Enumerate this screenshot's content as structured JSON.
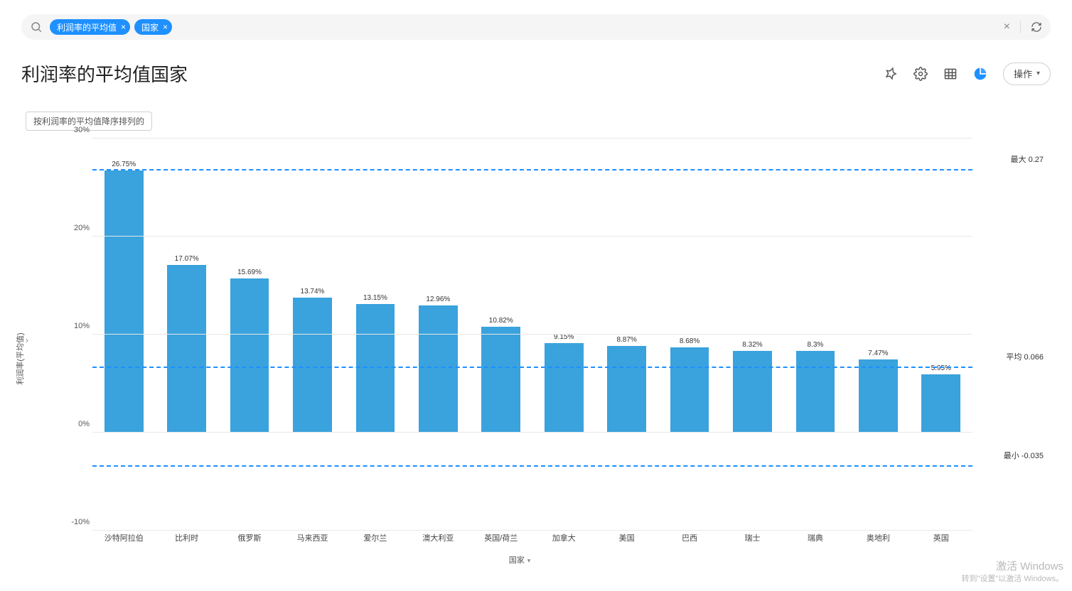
{
  "search": {
    "pills": [
      {
        "label": "利润率的平均值"
      },
      {
        "label": "国家"
      }
    ],
    "pill_bg": "#1e90ff",
    "searchbar_bg": "#f5f5f5"
  },
  "header": {
    "title": "利润率的平均值国家",
    "actions_label": "操作",
    "title_fontsize": 26
  },
  "sort_badge": "按利润率的平均值降序排列的",
  "chart": {
    "type": "bar",
    "y_label": "利润率(平均值)",
    "x_label": "国家",
    "ylim_min": -10,
    "ylim_max": 30,
    "ytick_step": 10,
    "y_tick_labels": [
      "-10%",
      "0%",
      "10%",
      "20%",
      "30%"
    ],
    "y_tick_values": [
      -10,
      0,
      10,
      20,
      30
    ],
    "bar_color": "#3aa2dd",
    "background_color": "#ffffff",
    "grid_color": "#e8e8e8",
    "refline_color": "#1e90ff",
    "bar_width_ratio": 0.62,
    "label_fontsize": 11,
    "value_label_fontsize": 10,
    "categories": [
      "沙特阿拉伯",
      "比利时",
      "俄罗斯",
      "马来西亚",
      "爱尔兰",
      "澳大利亚",
      "英国/荷兰",
      "加拿大",
      "美国",
      "巴西",
      "瑞士",
      "瑞典",
      "奥地利",
      "英国"
    ],
    "values": [
      26.75,
      17.07,
      15.69,
      13.74,
      13.15,
      12.96,
      10.82,
      9.15,
      8.87,
      8.68,
      8.32,
      8.3,
      7.47,
      5.95
    ],
    "value_labels": [
      "26.75%",
      "17.07%",
      "15.69%",
      "13.74%",
      "13.15%",
      "12.96%",
      "10.82%",
      "9.15%",
      "8.87%",
      "8.68%",
      "8.32%",
      "8.3%",
      "7.47%",
      "5.95%"
    ],
    "reference_lines": [
      {
        "value": 26.75,
        "label": "最大 0.27"
      },
      {
        "value": 6.6,
        "label": "平均 0.066"
      },
      {
        "value": -3.5,
        "label": "最小 -0.035"
      }
    ]
  },
  "watermark": {
    "line1": "激活 Windows",
    "line2": "转到\"设置\"以激活 Windows。"
  }
}
